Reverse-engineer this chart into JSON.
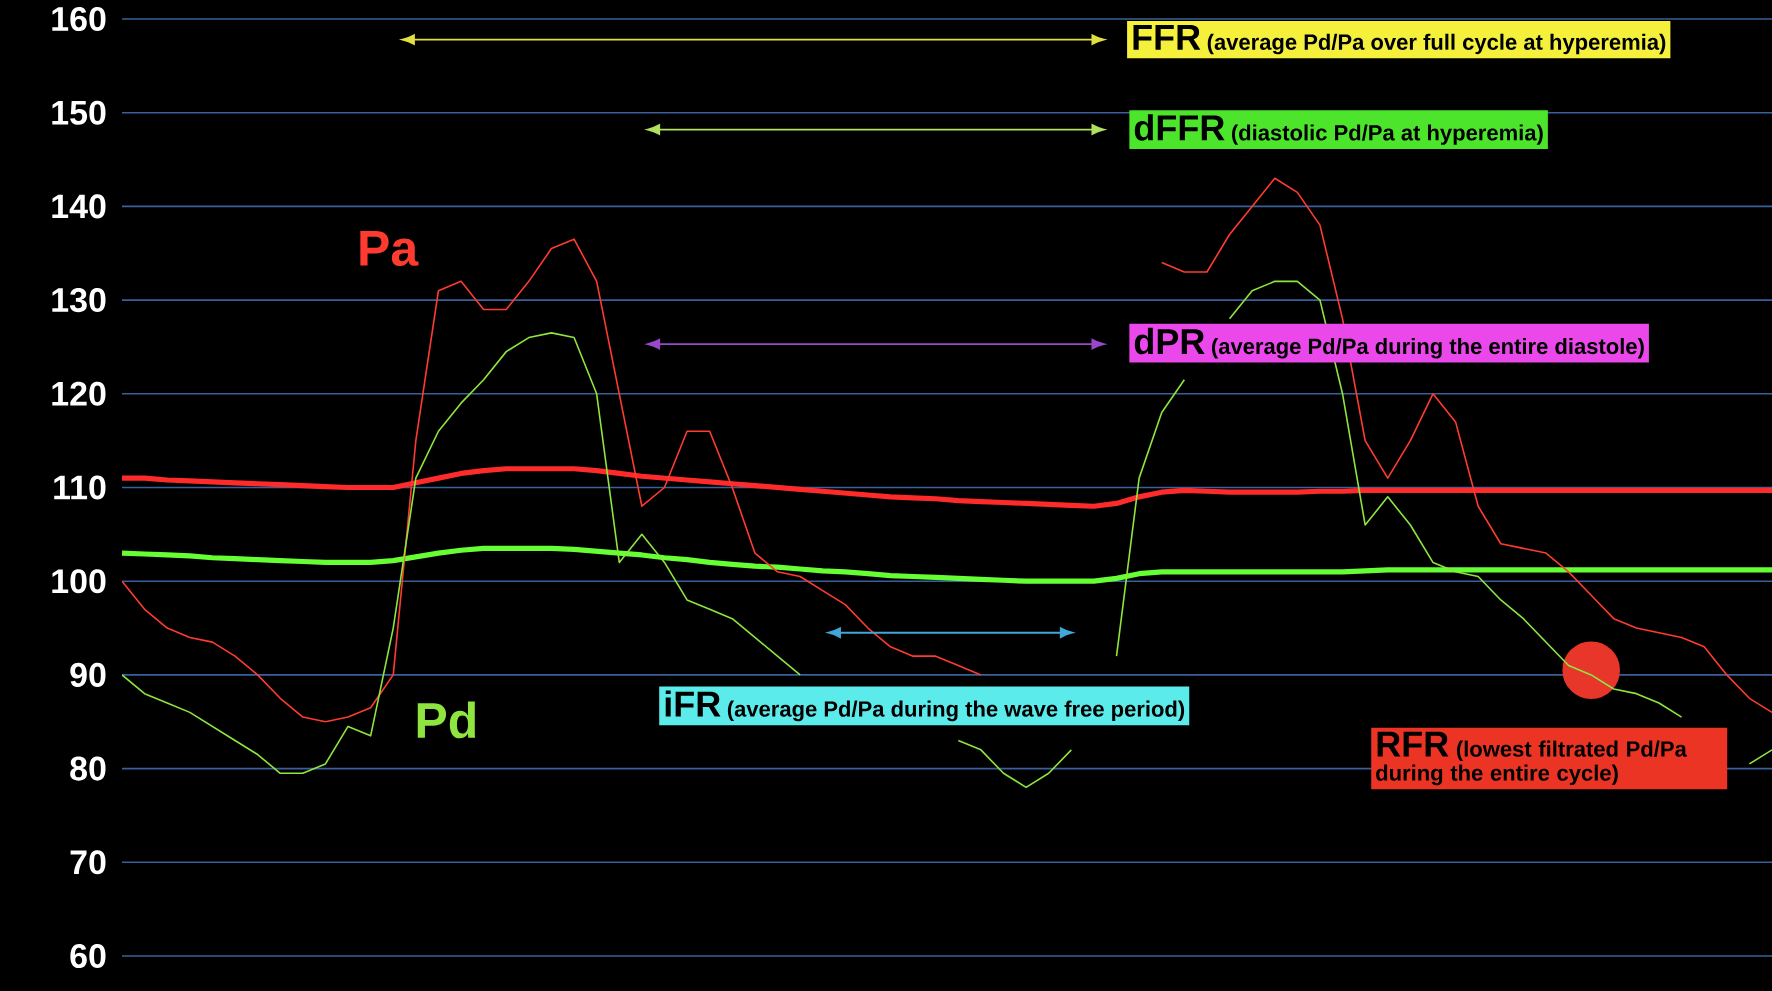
{
  "chart_data": {
    "type": "line",
    "categories": [
      null,
      null,
      null,
      null,
      null,
      null,
      null,
      null,
      null,
      null,
      null,
      null,
      null,
      null,
      null,
      null,
      null,
      null,
      null,
      null,
      null,
      null,
      null,
      null,
      null,
      null,
      null,
      null,
      null,
      null,
      null,
      null,
      null,
      null,
      null,
      null,
      null,
      null,
      null,
      null,
      null,
      null,
      null,
      null,
      null,
      null,
      null,
      null,
      null,
      null,
      null,
      null,
      null,
      null,
      null,
      null,
      null,
      null,
      null,
      null,
      null,
      null,
      null,
      null,
      null,
      null,
      null,
      null,
      null,
      null,
      null,
      null,
      null,
      null
    ],
    "ylim": [
      60,
      160
    ],
    "yticks": [
      60,
      70,
      80,
      90,
      100,
      110,
      120,
      130,
      140,
      150,
      160
    ],
    "grid": "y",
    "legend": false,
    "tick_labels": "y",
    "marker": "none",
    "annotations": [
      "FFR",
      "(average Pd/Pa over full cycle at hyperemia)",
      "dFFR",
      "(diastolic Pd/Pa at hyperemia)",
      "dPR",
      "(average Pd/Pa during the entire diastole)",
      "iFR",
      "(average Pd/Pa during the wave free period)",
      "RFR",
      "(lowest filtrated  Pd/Pa during the entire cycle)"
    ],
    "series": [
      {
        "name": "Pa",
        "color": "#ff3b30",
        "values": [
          100,
          97,
          95,
          94,
          93.5,
          92,
          90,
          87.5,
          85.5,
          85,
          85.5,
          86.5,
          90,
          115,
          131,
          132,
          129,
          129,
          132,
          135.5,
          136.5,
          132,
          120,
          108,
          110,
          116,
          116,
          110,
          103,
          101,
          100.5,
          99,
          97.5,
          95,
          93,
          92,
          92,
          91,
          90,
          null,
          null,
          null,
          null,
          null,
          null,
          null,
          134,
          133,
          133,
          137,
          140,
          143,
          141.5,
          138,
          128,
          115,
          111,
          115,
          120,
          117,
          108,
          104,
          103.5,
          103,
          101,
          98.5,
          96,
          95,
          94.5,
          94,
          93,
          90,
          87.5,
          86
        ]
      },
      {
        "name": "Pd",
        "color": "#8ee53f",
        "values": [
          90,
          88,
          87,
          86,
          84.5,
          83,
          81.5,
          79.5,
          79.5,
          80.5,
          84.5,
          83.5,
          95,
          111,
          116,
          119,
          121.5,
          124.5,
          126,
          126.5,
          126,
          120,
          102,
          105,
          102,
          98,
          97,
          96,
          94,
          92,
          90,
          null,
          null,
          null,
          null,
          null,
          null,
          83,
          82,
          79.5,
          78,
          79.5,
          82,
          null,
          92,
          111,
          118,
          121.5,
          null,
          128,
          131,
          132,
          132,
          130,
          120,
          106,
          109,
          106,
          102,
          101,
          100.5,
          98,
          96,
          93.5,
          91,
          90,
          88.5,
          88,
          87,
          85.5,
          null,
          null,
          80.5,
          82
        ]
      },
      {
        "color": "#ff2a2a",
        "values": [
          111,
          111,
          110.8,
          110.7,
          110.6,
          110.5,
          110.4,
          110.3,
          110.2,
          110.1,
          110,
          110,
          110,
          110.5,
          111,
          111.5,
          111.8,
          112,
          112,
          112,
          112,
          111.8,
          111.5,
          111.2,
          111,
          110.8,
          110.6,
          110.4,
          110.2,
          110,
          109.8,
          109.6,
          109.4,
          109.2,
          109,
          108.9,
          108.8,
          108.6,
          108.5,
          108.4,
          108.3,
          108.2,
          108.1,
          108,
          108.3,
          109,
          109.5,
          109.7,
          109.6,
          109.5,
          109.5,
          109.5,
          109.5,
          109.6,
          109.6,
          109.7,
          109.7,
          109.7,
          109.7,
          109.7,
          109.7,
          109.7,
          109.7,
          109.7,
          109.7,
          109.7,
          109.7,
          109.7,
          109.7,
          109.7,
          109.7,
          109.7,
          109.7,
          109.7
        ]
      },
      {
        "color": "#66ff33",
        "values": [
          103,
          102.9,
          102.8,
          102.7,
          102.5,
          102.4,
          102.3,
          102.2,
          102.1,
          102,
          102,
          102,
          102.2,
          102.6,
          103,
          103.3,
          103.5,
          103.5,
          103.5,
          103.5,
          103.4,
          103.2,
          103,
          102.8,
          102.5,
          102.3,
          102,
          101.8,
          101.6,
          101.5,
          101.3,
          101.1,
          101,
          100.8,
          100.6,
          100.5,
          100.4,
          100.3,
          100.2,
          100.1,
          100,
          100,
          100,
          100,
          100.3,
          100.8,
          101,
          101,
          101,
          101,
          101,
          101,
          101,
          101,
          101,
          101.1,
          101.2,
          101.2,
          101.2,
          101.2,
          101.2,
          101.2,
          101.2,
          101.2,
          101.2,
          101.2,
          101.2,
          101.2,
          101.2,
          101.2,
          101.2,
          101.2,
          101.2,
          101.2
        ]
      },
      {
        "type": "scatter",
        "marker": "circle",
        "color": "#e8362a",
        "values": [
          null,
          null,
          null,
          null,
          null,
          null,
          null,
          null,
          null,
          null,
          null,
          null,
          null,
          null,
          null,
          null,
          null,
          null,
          null,
          null,
          null,
          null,
          null,
          null,
          null,
          null,
          null,
          null,
          null,
          null,
          null,
          null,
          null,
          null,
          null,
          null,
          null,
          null,
          null,
          null,
          null,
          null,
          null,
          null,
          null,
          null,
          null,
          null,
          null,
          null,
          null,
          null,
          null,
          null,
          null,
          null,
          null,
          null,
          null,
          null,
          null,
          null,
          null,
          null,
          null,
          90.5,
          null,
          null,
          null,
          null,
          null,
          null,
          null,
          null
        ]
      }
    ]
  }
}
